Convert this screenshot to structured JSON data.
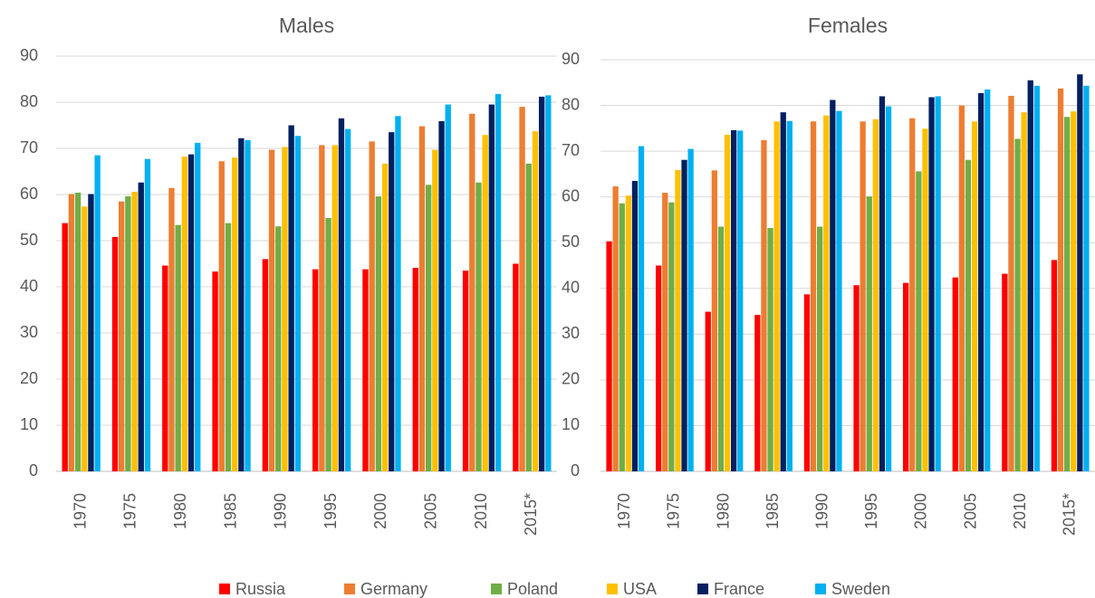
{
  "chart_data": [
    {
      "type": "bar",
      "title": "Males",
      "categories": [
        "1970",
        "1975",
        "1980",
        "1985",
        "1990",
        "1995",
        "2000",
        "2005",
        "2010",
        "2015*"
      ],
      "ylim": [
        0,
        90
      ],
      "yticks": [
        0,
        10,
        20,
        30,
        40,
        50,
        60,
        70,
        80,
        90
      ],
      "grid": true,
      "legend": "bottom",
      "series": [
        {
          "name": "Russia",
          "color": "#ff0000",
          "values": [
            53.8,
            50.8,
            44.6,
            43.3,
            46.0,
            43.8,
            43.8,
            44.1,
            43.5,
            45.0
          ]
        },
        {
          "name": "Germany",
          "color": "#ed7d31",
          "values": [
            60.1,
            58.5,
            61.4,
            67.2,
            69.7,
            70.7,
            71.5,
            74.8,
            77.5,
            79.0
          ]
        },
        {
          "name": "Poland",
          "color": "#70ad47",
          "values": [
            60.4,
            59.6,
            53.4,
            53.8,
            53.1,
            54.9,
            59.6,
            62.1,
            62.6,
            66.7
          ]
        },
        {
          "name": "USA",
          "color": "#ffc000",
          "values": [
            57.4,
            60.6,
            68.2,
            68.0,
            70.3,
            70.7,
            66.7,
            69.7,
            72.9,
            73.7
          ]
        },
        {
          "name": "France",
          "color": "#002060",
          "values": [
            60.1,
            62.6,
            68.7,
            72.2,
            75.0,
            76.5,
            73.5,
            75.9,
            79.5,
            81.2
          ]
        },
        {
          "name": "Sweden",
          "color": "#00b0f0",
          "values": [
            68.5,
            67.7,
            71.2,
            71.8,
            72.7,
            74.2,
            77.0,
            79.5,
            81.8,
            81.5
          ]
        }
      ]
    },
    {
      "type": "bar",
      "title": "Females",
      "categories": [
        "1970",
        "1975",
        "1980",
        "1985",
        "1990",
        "1995",
        "2000",
        "2005",
        "2010",
        "2015*"
      ],
      "ylim": [
        0,
        90
      ],
      "yticks": [
        0,
        10,
        20,
        30,
        40,
        50,
        60,
        70,
        80,
        90
      ],
      "grid": true,
      "series": [
        {
          "name": "Russia",
          "color": "#ff0000",
          "values": [
            50.3,
            45.0,
            34.9,
            34.2,
            38.7,
            40.7,
            41.2,
            42.4,
            43.2,
            46.2
          ]
        },
        {
          "name": "Germany",
          "color": "#ed7d31",
          "values": [
            62.3,
            60.9,
            65.8,
            72.4,
            76.5,
            76.5,
            77.2,
            80.0,
            82.1,
            83.7
          ]
        },
        {
          "name": "Poland",
          "color": "#70ad47",
          "values": [
            58.6,
            58.8,
            53.5,
            53.2,
            53.5,
            60.1,
            65.6,
            68.1,
            72.7,
            77.5
          ]
        },
        {
          "name": "USA",
          "color": "#ffc000",
          "values": [
            60.3,
            65.9,
            73.6,
            76.5,
            77.8,
            77.0,
            74.9,
            76.5,
            78.5,
            78.7
          ]
        },
        {
          "name": "France",
          "color": "#002060",
          "values": [
            63.5,
            68.1,
            74.6,
            78.5,
            81.2,
            82.0,
            81.8,
            82.7,
            85.5,
            86.8
          ]
        },
        {
          "name": "Sweden",
          "color": "#00b0f0",
          "values": [
            71.1,
            70.5,
            74.5,
            76.6,
            78.8,
            79.8,
            82.0,
            83.5,
            84.3,
            84.3
          ]
        }
      ]
    }
  ]
}
